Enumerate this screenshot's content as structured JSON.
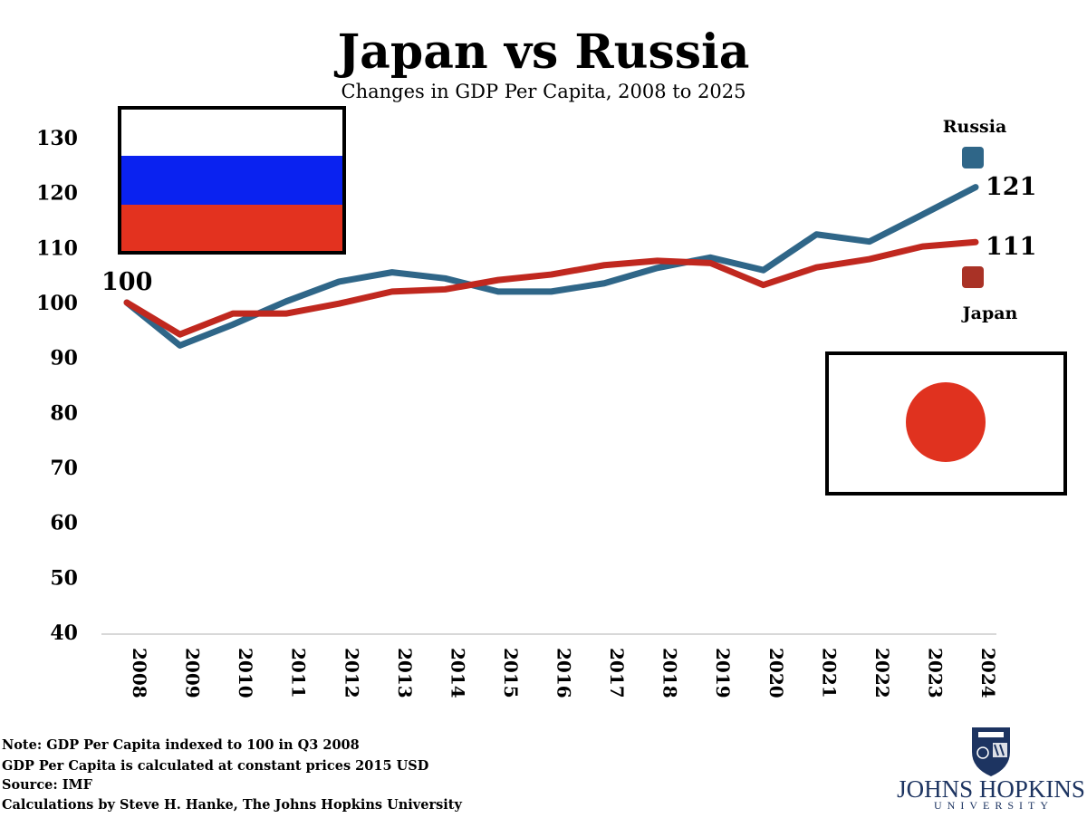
{
  "chart_data": {
    "type": "line",
    "title": "Japan vs Russia",
    "subtitle": "Changes in GDP Per Capita, 2008 to 2025",
    "xlabel": "",
    "ylabel": "",
    "x": [
      "2008",
      "2009",
      "2010",
      "2011",
      "2012",
      "2013",
      "2014",
      "2015",
      "2016",
      "2017",
      "2018",
      "2019",
      "2020",
      "2021",
      "2022",
      "2023",
      "2024"
    ],
    "ylim": [
      40,
      130
    ],
    "yticks": [
      40,
      50,
      60,
      70,
      80,
      90,
      100,
      110,
      120,
      130
    ],
    "grid": false,
    "legend_placement": "right",
    "series": [
      {
        "name": "Russia",
        "color": "#2f6688",
        "values": [
          100,
          92.2,
          96,
          100.2,
          103.8,
          105.5,
          104.4,
          102,
          102,
          103.5,
          106.3,
          108.2,
          105.9,
          112.4,
          111.1,
          116,
          121
        ]
      },
      {
        "name": "Japan",
        "color": "#c0281f",
        "values": [
          100,
          94.2,
          98,
          98,
          99.8,
          102,
          102.4,
          104.1,
          105.1,
          106.8,
          107.6,
          107.2,
          103.2,
          106.4,
          107.9,
          110.2,
          111
        ]
      }
    ],
    "annotations": {
      "start": "100",
      "russia_end": "121",
      "japan_end": "111"
    }
  },
  "flags": {
    "russia": [
      "#ffffff",
      "#0a22f0",
      "#e3321f"
    ],
    "japan": {
      "field": "#ffffff",
      "disc": "#e0321f"
    }
  },
  "notes": [
    "Note: GDP Per Capita indexed to 100 in Q3 2008",
    "GDP Per Capita is calculated at constant prices 2015 USD",
    "Source: IMF",
    "Calculations by Steve H. Hanke, The Johns Hopkins University"
  ],
  "logo": {
    "line1": "JOHNS HOPKINS",
    "line2": "UNIVERSITY"
  }
}
